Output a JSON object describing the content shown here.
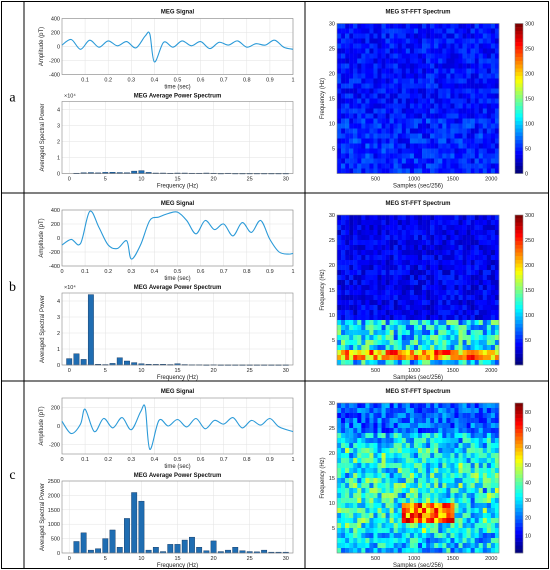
{
  "rows": [
    {
      "label": "a",
      "signal": {
        "title": "MEG Signal",
        "ylabel": "Amplitude (pT)",
        "xlabel": "time (sec)",
        "yticks": [
          "400",
          "200",
          "0",
          "-200",
          "-400"
        ],
        "xticks": [
          "0.1",
          "0.2",
          "0.3",
          "0.4",
          "0.5",
          "0.6",
          "0.7",
          "0.8",
          "0.9",
          "1"
        ]
      },
      "spectrum": {
        "title": "MEG Average Power Spectrum",
        "ylabel": "Averaged Spectral Power",
        "xlabel": "Frequency (Hz)",
        "exponent": "×10⁴",
        "yticks": [
          "4",
          "3",
          "2",
          "1",
          "0"
        ],
        "xticks": [
          "0",
          "5",
          "10",
          "15",
          "20",
          "25",
          "30"
        ]
      },
      "stfft": {
        "title": "MEG ST-FFT Spectrum",
        "ylabel": "Frequency (Hz)",
        "xlabel": "Samples (sec/256)",
        "yticks": [
          "30",
          "25",
          "20",
          "15",
          "10",
          "5"
        ],
        "xticks": [
          "500",
          "1000",
          "1500",
          "2000"
        ],
        "cbticks": [
          "300",
          "250",
          "200",
          "150",
          "100",
          "50",
          "0"
        ]
      }
    },
    {
      "label": "b",
      "signal": {
        "title": "MEG Signal",
        "ylabel": "Amplitude (pT)",
        "xlabel": "time (sec)",
        "yticks": [
          "400",
          "200",
          "0",
          "-200",
          "-400"
        ],
        "xticks": [
          "0",
          "0.1",
          "0.2",
          "0.3",
          "0.4",
          "0.5",
          "0.6",
          "0.7",
          "0.8",
          "0.9",
          "1"
        ]
      },
      "spectrum": {
        "title": "MEG Average Power Spectrum",
        "ylabel": "Averaged Spectral Power",
        "xlabel": "Frequency (Hz)",
        "exponent": "×10⁴",
        "yticks": [
          "4",
          "3",
          "2",
          "1",
          "0"
        ],
        "xticks": [
          "0",
          "5",
          "10",
          "15",
          "20",
          "25",
          "30"
        ]
      },
      "stfft": {
        "title": "MEG ST-FFT Spectrum",
        "ylabel": "Frequency (Hz)",
        "xlabel": "Samples (sec/256)",
        "yticks": [
          "30",
          "25",
          "20",
          "15",
          "10",
          "5"
        ],
        "xticks": [
          "500",
          "1000",
          "1500",
          "2000"
        ],
        "cbticks": [
          "300",
          "250",
          "200",
          "150",
          "100",
          "50"
        ]
      }
    },
    {
      "label": "c",
      "signal": {
        "title": "MEG Signal",
        "ylabel": "Amplitude (pT)",
        "xlabel": "time (sec)",
        "yticks": [
          "200",
          "0",
          "-200"
        ],
        "xticks": [
          "0",
          "0.1",
          "0.2",
          "0.3",
          "0.4",
          "0.5",
          "0.6",
          "0.7",
          "0.8",
          "0.9",
          "1"
        ]
      },
      "spectrum": {
        "title": "MEG Average Power Spectrum",
        "ylabel": "Averaged Spectral Power",
        "xlabel": "Frequency (Hz)",
        "exponent": "",
        "yticks": [
          "2500",
          "2000",
          "1500",
          "1000",
          "500",
          "0"
        ],
        "xticks": [
          "0",
          "5",
          "10",
          "15",
          "20",
          "25",
          "30"
        ]
      },
      "stfft": {
        "title": "MEG ST-FFT Spectrum",
        "ylabel": "Frequency (Hz)",
        "xlabel": "Samples (sec/256)",
        "yticks": [
          "30",
          "25",
          "20",
          "15",
          "10",
          "5"
        ],
        "xticks": [
          "500",
          "1000",
          "1500",
          "2000"
        ],
        "cbticks": [
          "80",
          "70",
          "60",
          "50",
          "40",
          "30",
          "20",
          "10"
        ]
      }
    }
  ],
  "chart_data": [
    {
      "type": "line",
      "row": "a",
      "title": "MEG Signal",
      "xlabel": "time (sec)",
      "ylabel": "Amplitude (pT)",
      "xlim": [
        0,
        1
      ],
      "ylim": [
        -400,
        400
      ],
      "x": [
        0,
        0.04,
        0.08,
        0.12,
        0.16,
        0.2,
        0.24,
        0.28,
        0.32,
        0.36,
        0.38,
        0.4,
        0.44,
        0.48,
        0.52,
        0.56,
        0.6,
        0.64,
        0.68,
        0.72,
        0.76,
        0.8,
        0.84,
        0.88,
        0.92,
        0.96,
        1
      ],
      "y": [
        20,
        100,
        -40,
        90,
        -10,
        80,
        10,
        70,
        -20,
        150,
        180,
        -220,
        60,
        -10,
        80,
        10,
        70,
        -30,
        60,
        20,
        80,
        -10,
        40,
        20,
        90,
        -10,
        -40
      ]
    },
    {
      "type": "bar",
      "row": "a",
      "title": "MEG Average Power Spectrum",
      "xlabel": "Frequency (Hz)",
      "ylabel": "Averaged Spectral Power",
      "xlim": [
        -1,
        31
      ],
      "ylim": [
        0,
        45000
      ],
      "x": [
        1,
        2,
        3,
        4,
        5,
        6,
        7,
        8,
        9,
        10,
        11,
        12,
        13,
        14,
        15,
        16,
        17,
        18,
        19,
        20,
        21,
        22,
        23,
        24,
        25,
        26,
        27,
        28,
        29,
        30
      ],
      "values": [
        200,
        500,
        600,
        400,
        700,
        800,
        600,
        500,
        1500,
        1800,
        700,
        300,
        300,
        200,
        300,
        300,
        200,
        200,
        300,
        200,
        100,
        200,
        100,
        100,
        100,
        100,
        100,
        100,
        100,
        100
      ]
    },
    {
      "type": "heatmap",
      "row": "a",
      "title": "MEG ST-FFT Spectrum",
      "xlabel": "Samples (sec/256)",
      "ylabel": "Frequency (Hz)",
      "xlim": [
        0,
        2100
      ],
      "ylim": [
        0,
        30
      ],
      "zlim": [
        0,
        300
      ],
      "note_level": "mostly below 50, dark blue field"
    },
    {
      "type": "line",
      "row": "b",
      "title": "MEG Signal",
      "xlabel": "time (sec)",
      "ylabel": "Amplitude (pT)",
      "xlim": [
        0,
        1
      ],
      "ylim": [
        -400,
        400
      ],
      "x": [
        0,
        0.04,
        0.08,
        0.12,
        0.16,
        0.2,
        0.24,
        0.28,
        0.3,
        0.34,
        0.38,
        0.42,
        0.46,
        0.5,
        0.54,
        0.58,
        0.62,
        0.66,
        0.7,
        0.74,
        0.78,
        0.82,
        0.86,
        0.9,
        0.94,
        0.98,
        1
      ],
      "y": [
        -100,
        -20,
        -80,
        380,
        150,
        -100,
        -150,
        -40,
        -300,
        -100,
        250,
        300,
        350,
        370,
        250,
        60,
        250,
        120,
        200,
        30,
        220,
        80,
        250,
        -20,
        -200,
        -230,
        -220
      ]
    },
    {
      "type": "bar",
      "row": "b",
      "title": "MEG Average Power Spectrum",
      "xlabel": "Frequency (Hz)",
      "ylabel": "Averaged Spectral Power",
      "xlim": [
        -1,
        31
      ],
      "ylim": [
        0,
        45000
      ],
      "x": [
        0,
        1,
        2,
        3,
        4,
        5,
        6,
        7,
        8,
        9,
        10,
        11,
        12,
        13,
        14,
        15,
        16,
        17,
        18,
        19,
        20,
        21,
        22,
        23,
        24,
        25,
        26,
        27,
        28,
        29,
        30
      ],
      "values": [
        4000,
        7000,
        3500,
        44000,
        500,
        300,
        1000,
        4500,
        2500,
        1500,
        800,
        500,
        400,
        500,
        300,
        800,
        300,
        200,
        200,
        100,
        200,
        100,
        100,
        100,
        100,
        100,
        100,
        100,
        100,
        100,
        100
      ]
    },
    {
      "type": "heatmap",
      "row": "b",
      "title": "MEG ST-FFT Spectrum",
      "xlabel": "Samples (sec/256)",
      "ylabel": "Frequency (Hz)",
      "xlim": [
        0,
        2100
      ],
      "ylim": [
        0,
        30
      ],
      "zlim": [
        0,
        300
      ],
      "note_level": "strong band near 3 Hz, moderate below 9 Hz"
    },
    {
      "type": "line",
      "row": "c",
      "title": "MEG Signal",
      "xlabel": "time (sec)",
      "ylabel": "Amplitude (pT)",
      "xlim": [
        0,
        1
      ],
      "ylim": [
        -300,
        300
      ],
      "x": [
        0,
        0.04,
        0.08,
        0.1,
        0.14,
        0.18,
        0.22,
        0.26,
        0.3,
        0.34,
        0.36,
        0.38,
        0.42,
        0.46,
        0.5,
        0.54,
        0.58,
        0.62,
        0.66,
        0.7,
        0.74,
        0.78,
        0.82,
        0.86,
        0.9,
        0.94,
        1
      ],
      "y": [
        50,
        -80,
        20,
        180,
        -60,
        80,
        -20,
        90,
        -40,
        150,
        200,
        -250,
        60,
        0,
        70,
        -10,
        80,
        -30,
        60,
        20,
        90,
        -20,
        60,
        10,
        80,
        -10,
        -60
      ]
    },
    {
      "type": "bar",
      "row": "c",
      "title": "MEG Average Power Spectrum",
      "xlabel": "Frequency (Hz)",
      "ylabel": "Averaged Spectral Power",
      "xlim": [
        -1,
        31
      ],
      "ylim": [
        0,
        2500
      ],
      "x": [
        1,
        2,
        3,
        4,
        5,
        6,
        7,
        8,
        9,
        10,
        11,
        12,
        13,
        14,
        15,
        16,
        17,
        18,
        19,
        20,
        21,
        22,
        23,
        24,
        25,
        26,
        27,
        28,
        29,
        30
      ],
      "values": [
        400,
        700,
        100,
        150,
        500,
        800,
        200,
        1200,
        2100,
        1800,
        100,
        200,
        50,
        300,
        300,
        450,
        550,
        200,
        80,
        420,
        50,
        100,
        200,
        80,
        50,
        40,
        100,
        30,
        30,
        30
      ]
    },
    {
      "type": "heatmap",
      "row": "c",
      "title": "MEG ST-FFT Spectrum",
      "xlabel": "Samples (sec/256)",
      "ylabel": "Frequency (Hz)",
      "xlim": [
        0,
        2100
      ],
      "ylim": [
        0,
        30
      ],
      "zlim": [
        0,
        85
      ],
      "note_level": "broadband activity, peak near 7-9 Hz around sample 1200"
    }
  ]
}
